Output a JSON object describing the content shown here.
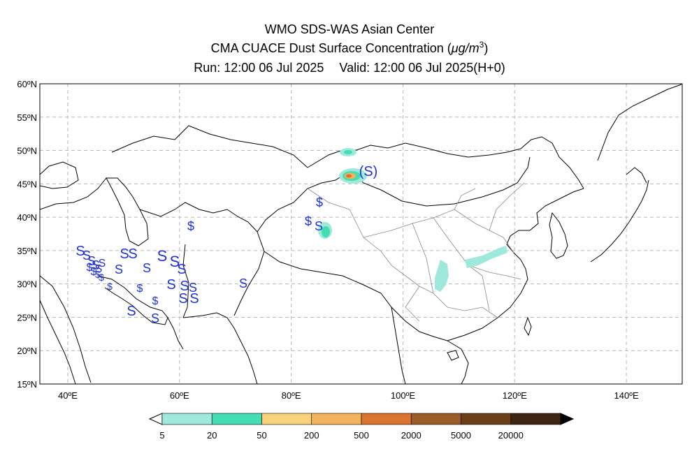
{
  "title": {
    "line1": "WMO SDS-WAS Asian Center",
    "line2_prefix": "CMA CUACE Dust Surface Concentration (",
    "line2_mu": "μg/m",
    "line2_sup": "3",
    "line2_suffix": ")",
    "run": "Run: 12:00 06 Jul 2025",
    "valid": "Valid: 12:00 06 Jul 2025(H+0)"
  },
  "map": {
    "lon_range": [
      35,
      150
    ],
    "lat_range": [
      15,
      60
    ],
    "lon_ticks": [
      "40ºE",
      "60ºE",
      "80ºE",
      "100ºE",
      "120ºE",
      "140ºE"
    ],
    "lat_ticks": [
      "60ºN",
      "55ºN",
      "50ºN",
      "45ºN",
      "40ºN",
      "35ºN",
      "30ºN",
      "25ºN",
      "20ºN",
      "15ºN"
    ],
    "grid": true
  },
  "colorbar": {
    "labels": [
      "5",
      "20",
      "50",
      "200",
      "500",
      "2000",
      "5000",
      "20000"
    ],
    "colors": [
      "#9ee8dc",
      "#44ddb2",
      "#f8d27a",
      "#f3b35d",
      "#d9732f",
      "#9b5b26",
      "#6a3f17",
      "#3d2512"
    ]
  },
  "colors": {
    "dust_symbol": "#2233cc",
    "coast": "#000000",
    "border_minor": "#888888",
    "grid": "#b8b8b8"
  }
}
